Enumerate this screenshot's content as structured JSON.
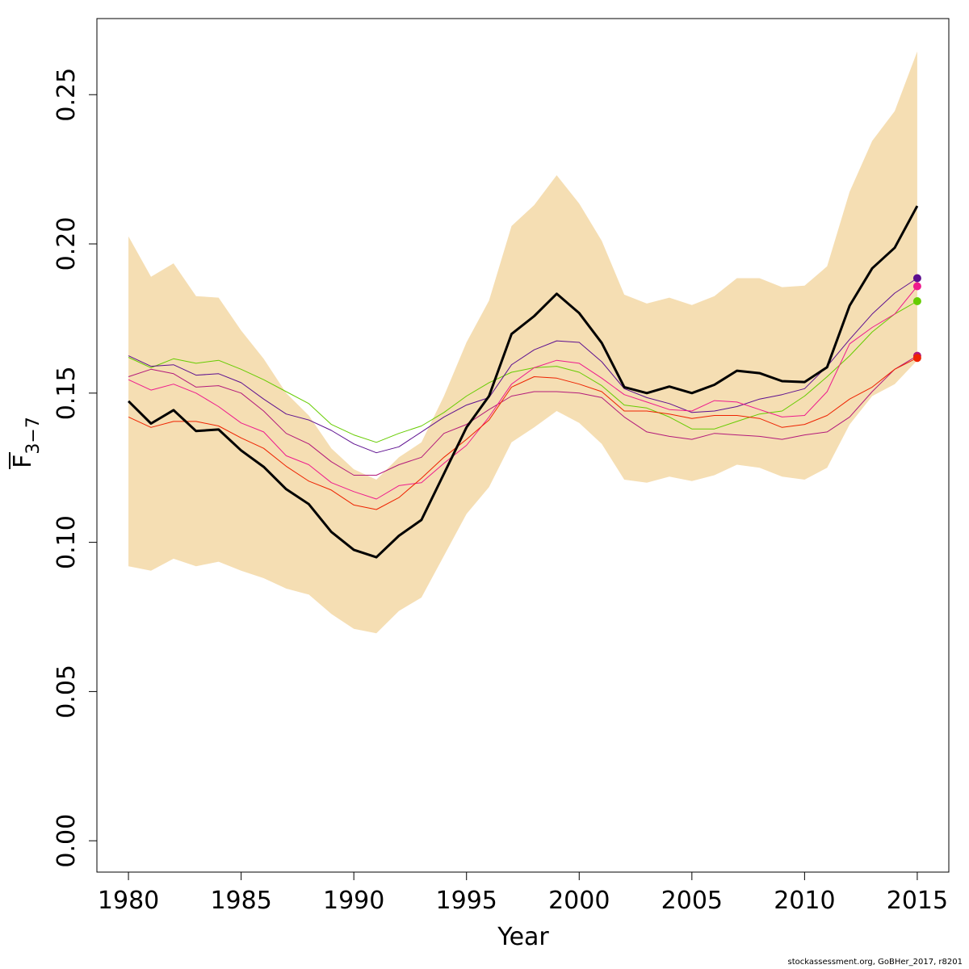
{
  "chart_data": {
    "type": "line",
    "xlabel": "Year",
    "ylabel_main": "F",
    "ylabel_sub": "3−7",
    "xlim": [
      1978.6,
      2016.4
    ],
    "ylim": [
      -0.0105,
      0.2755
    ],
    "x_ticks": [
      1980,
      1985,
      1990,
      1995,
      2000,
      2005,
      2010,
      2015
    ],
    "x_tick_labels": [
      "1980",
      "1985",
      "1990",
      "1995",
      "2000",
      "2005",
      "2010",
      "2015"
    ],
    "y_ticks": [
      0.0,
      0.05,
      0.1,
      0.15,
      0.2,
      0.25
    ],
    "y_tick_labels": [
      "0.00",
      "0.05",
      "0.10",
      "0.15",
      "0.20",
      "0.25"
    ],
    "band": {
      "color": "#f5deb3",
      "x": [
        1980,
        1981,
        1982,
        1983,
        1984,
        1985,
        1986,
        1987,
        1988,
        1989,
        1990,
        1991,
        1992,
        1993,
        1994,
        1995,
        1996,
        1997,
        1998,
        1999,
        2000,
        2001,
        2002,
        2003,
        2004,
        2005,
        2006,
        2007,
        2008,
        2009,
        2010,
        2011,
        2012,
        2013,
        2014,
        2015
      ],
      "upper": [
        0.2025,
        0.189,
        0.1935,
        0.1825,
        0.182,
        0.171,
        0.1615,
        0.15,
        0.1425,
        0.1315,
        0.1245,
        0.121,
        0.1285,
        0.1335,
        0.149,
        0.167,
        0.181,
        0.206,
        0.213,
        0.223,
        0.2135,
        0.201,
        0.183,
        0.18,
        0.182,
        0.1795,
        0.1825,
        0.1885,
        0.1885,
        0.1855,
        0.186,
        0.1925,
        0.2175,
        0.2345,
        0.2445,
        0.2645
      ],
      "lower": [
        0.092,
        0.0905,
        0.0945,
        0.092,
        0.0935,
        0.0905,
        0.088,
        0.0845,
        0.0825,
        0.076,
        0.071,
        0.0695,
        0.077,
        0.0815,
        0.0955,
        0.1095,
        0.1185,
        0.1335,
        0.1385,
        0.144,
        0.14,
        0.133,
        0.121,
        0.12,
        0.122,
        0.1205,
        0.1225,
        0.126,
        0.125,
        0.122,
        0.121,
        0.125,
        0.1395,
        0.149,
        0.153,
        0.161
      ]
    },
    "x": [
      1980,
      1981,
      1982,
      1983,
      1984,
      1985,
      1986,
      1987,
      1988,
      1989,
      1990,
      1991,
      1992,
      1993,
      1994,
      1995,
      1996,
      1997,
      1998,
      1999,
      2000,
      2001,
      2002,
      2003,
      2004,
      2005,
      2006,
      2007,
      2008,
      2009,
      2010,
      2011,
      2012,
      2013,
      2014,
      2015
    ],
    "series": [
      {
        "color": "#66cc00",
        "width": 1,
        "endpoint": 0.1808,
        "values": [
          0.162,
          0.1585,
          0.1615,
          0.16,
          0.161,
          0.158,
          0.1545,
          0.1505,
          0.1465,
          0.1395,
          0.136,
          0.1335,
          0.1365,
          0.139,
          0.1435,
          0.149,
          0.1535,
          0.157,
          0.1585,
          0.159,
          0.157,
          0.1525,
          0.146,
          0.145,
          0.142,
          0.138,
          0.138,
          0.1405,
          0.143,
          0.144,
          0.149,
          0.1555,
          0.1625,
          0.1705,
          0.1765,
          0.1808
        ]
      },
      {
        "color": "#5d0f8f",
        "width": 1,
        "endpoint": 0.1885,
        "values": [
          0.1625,
          0.159,
          0.1595,
          0.156,
          0.1565,
          0.1535,
          0.148,
          0.143,
          0.141,
          0.1375,
          0.133,
          0.13,
          0.132,
          0.137,
          0.142,
          0.146,
          0.1485,
          0.1595,
          0.1645,
          0.1675,
          0.167,
          0.1605,
          0.1515,
          0.1485,
          0.1465,
          0.1435,
          0.144,
          0.1455,
          0.148,
          0.1495,
          0.1515,
          0.159,
          0.168,
          0.1765,
          0.1835,
          0.1885
        ]
      },
      {
        "color": "#b3197a",
        "width": 1,
        "endpoint": 0.1625,
        "values": [
          0.1555,
          0.158,
          0.1565,
          0.152,
          0.1525,
          0.15,
          0.144,
          0.1365,
          0.133,
          0.127,
          0.1225,
          0.1225,
          0.126,
          0.1285,
          0.1365,
          0.1395,
          0.1445,
          0.149,
          0.1505,
          0.1505,
          0.15,
          0.1485,
          0.142,
          0.137,
          0.1355,
          0.1345,
          0.1365,
          0.136,
          0.1355,
          0.1345,
          0.136,
          0.137,
          0.142,
          0.1505,
          0.158,
          0.1625
        ]
      },
      {
        "color": "#ee1a8c",
        "width": 1,
        "endpoint": 0.1858,
        "values": [
          0.1545,
          0.151,
          0.153,
          0.15,
          0.1455,
          0.14,
          0.137,
          0.129,
          0.126,
          0.12,
          0.117,
          0.1145,
          0.119,
          0.12,
          0.1265,
          0.1325,
          0.142,
          0.153,
          0.1585,
          0.161,
          0.16,
          0.155,
          0.1495,
          0.147,
          0.1445,
          0.144,
          0.1475,
          0.147,
          0.1445,
          0.142,
          0.1425,
          0.1505,
          0.1665,
          0.172,
          0.1765,
          0.1858
        ]
      },
      {
        "color": "#ee2200",
        "width": 1,
        "endpoint": 0.1618,
        "values": [
          0.142,
          0.1385,
          0.1405,
          0.1405,
          0.139,
          0.135,
          0.1315,
          0.1255,
          0.1205,
          0.1175,
          0.1125,
          0.111,
          0.115,
          0.1215,
          0.1285,
          0.1345,
          0.141,
          0.152,
          0.1555,
          0.155,
          0.153,
          0.1505,
          0.144,
          0.144,
          0.143,
          0.1415,
          0.1425,
          0.1425,
          0.1415,
          0.1385,
          0.1395,
          0.1425,
          0.148,
          0.152,
          0.158,
          0.1618
        ]
      },
      {
        "color": "#000000",
        "width": 3,
        "endpoint": null,
        "values": [
          0.1473,
          0.1398,
          0.1443,
          0.1373,
          0.1378,
          0.1308,
          0.1253,
          0.1178,
          0.1128,
          0.1035,
          0.0975,
          0.095,
          0.1022,
          0.1075,
          0.123,
          0.1385,
          0.149,
          0.1698,
          0.1758,
          0.1833,
          0.1768,
          0.1668,
          0.152,
          0.15,
          0.1522,
          0.15,
          0.1528,
          0.1575,
          0.1567,
          0.154,
          0.1537,
          0.1587,
          0.1793,
          0.1918,
          0.1987,
          0.2127
        ]
      }
    ]
  },
  "credit": "stockassessment.org, GoBHer_2017, r8201"
}
